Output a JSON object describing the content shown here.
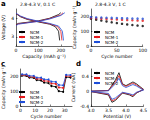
{
  "chart_data": [
    {
      "type": "line",
      "label": "a",
      "title": "2.8-4.3 V, 0.1 C",
      "xlabel": "Capacity (mAh g⁻¹)",
      "ylabel": "Voltage (V)",
      "xlim": [
        0,
        250
      ],
      "xticks": [
        0,
        100,
        200
      ],
      "ylim": [
        2.5,
        4.5
      ],
      "yticks": [
        3,
        4
      ],
      "grid": false,
      "legend": "lower left",
      "series": [
        {
          "name": "NCM",
          "color": "#000000",
          "x": [
            0,
            10,
            50,
            100,
            150,
            190,
            200,
            200,
            0,
            20,
            50,
            100,
            150,
            175,
            190,
            195
          ],
          "values": [
            3.65,
            3.72,
            3.78,
            3.86,
            4.0,
            4.2,
            4.3,
            null,
            4.25,
            4.08,
            3.94,
            3.8,
            3.68,
            3.55,
            3.3,
            2.8
          ]
        },
        {
          "name": "NCM-1",
          "color": "#e41a1c",
          "x": [
            0,
            10,
            50,
            100,
            150,
            200,
            210,
            210,
            0,
            20,
            50,
            100,
            150,
            185,
            200,
            205
          ],
          "values": [
            3.62,
            3.7,
            3.76,
            3.84,
            3.98,
            4.18,
            4.3,
            null,
            4.26,
            4.1,
            3.96,
            3.82,
            3.7,
            3.56,
            3.3,
            2.8
          ]
        },
        {
          "name": "NCM-2",
          "color": "#1f4fd8",
          "x": [
            0,
            10,
            50,
            100,
            150,
            200,
            218,
            218,
            0,
            20,
            50,
            100,
            150,
            190,
            207,
            212
          ],
          "values": [
            3.6,
            3.68,
            3.75,
            3.83,
            3.96,
            4.15,
            4.3,
            null,
            4.27,
            4.12,
            3.98,
            3.84,
            3.72,
            3.58,
            3.3,
            2.8
          ]
        }
      ]
    },
    {
      "type": "scatter",
      "label": "b",
      "title": "2.8-4.3 V, 1 C",
      "xlabel": "Cycle number",
      "ylabel": "Capacity (mAh g⁻¹)",
      "xlim": [
        0,
        100
      ],
      "xticks": [
        0,
        50,
        100
      ],
      "ylim": [
        0,
        250
      ],
      "yticks": [
        0,
        100,
        200
      ],
      "grid": false,
      "legend": "lower left",
      "marker": "circle",
      "series": [
        {
          "name": "NCM",
          "color": "#000000",
          "x": [
            0,
            10,
            20,
            30,
            40,
            50,
            60,
            70,
            80,
            90,
            100
          ],
          "values": [
            185,
            178,
            172,
            166,
            160,
            155,
            150,
            146,
            142,
            138,
            135
          ]
        },
        {
          "name": "NCM-1",
          "color": "#e41a1c",
          "x": [
            0,
            10,
            20,
            30,
            40,
            50,
            60,
            70,
            80,
            90,
            100
          ],
          "values": [
            190,
            187,
            185,
            183,
            181,
            179,
            177,
            175,
            174,
            172,
            171
          ]
        },
        {
          "name": "NCM-2",
          "color": "#1f4fd8",
          "x": [
            0,
            10,
            20,
            30,
            40,
            50,
            60,
            70,
            80,
            90,
            100
          ],
          "values": [
            195,
            193,
            192,
            191,
            190,
            189,
            188,
            187,
            186,
            185,
            184
          ]
        }
      ]
    },
    {
      "type": "line",
      "label": "c",
      "xlabel": "Cycle number",
      "ylabel": "Capacity (mAh g⁻¹)",
      "xlim": [
        0,
        35
      ],
      "xticks": [
        0,
        10,
        20,
        30
      ],
      "ylim": [
        0,
        250
      ],
      "yticks": [
        0,
        100,
        200
      ],
      "grid": false,
      "legend": "lower left",
      "marker": "circle",
      "series": [
        {
          "name": "NCM",
          "color": "#000000",
          "x": [
            1,
            4,
            6,
            9,
            11,
            14,
            16,
            19,
            21,
            24,
            26,
            29,
            31,
            34
          ],
          "values": [
            205,
            203,
            192,
            190,
            175,
            172,
            158,
            155,
            135,
            130,
            100,
            96,
            195,
            192
          ]
        },
        {
          "name": "NCM-1",
          "color": "#e41a1c",
          "x": [
            1,
            4,
            6,
            9,
            11,
            14,
            16,
            19,
            21,
            24,
            26,
            29,
            31,
            34
          ],
          "values": [
            210,
            208,
            198,
            196,
            184,
            182,
            170,
            168,
            152,
            150,
            125,
            122,
            203,
            201
          ]
        },
        {
          "name": "NCM-2",
          "color": "#1f4fd8",
          "x": [
            1,
            4,
            6,
            9,
            11,
            14,
            16,
            19,
            21,
            24,
            26,
            29,
            31,
            34
          ],
          "values": [
            214,
            213,
            204,
            203,
            192,
            191,
            180,
            179,
            165,
            163,
            142,
            140,
            210,
            209
          ]
        }
      ]
    },
    {
      "type": "line",
      "label": "d",
      "xlabel": "Potential (V)",
      "ylabel": "Current (mA)",
      "xlim": [
        3,
        4.5
      ],
      "xticks": [
        {
          "value": 3,
          "label": "3.0"
        },
        3.5,
        {
          "value": 4,
          "label": "4.0"
        },
        4.5
      ],
      "ylim": [
        -0.4,
        0.6
      ],
      "yticks": [
        -0.4,
        0,
        0.4
      ],
      "grid": false,
      "legend": "upper left",
      "series": [
        {
          "name": "NCM",
          "color": "#000000",
          "x": [
            3.0,
            3.5,
            3.7,
            3.8,
            3.9,
            4.0,
            4.2,
            4.3,
            4.5,
            4.3,
            4.2,
            4.1,
            3.9,
            3.7,
            3.6,
            3.5,
            3.0
          ],
          "values": [
            0,
            0.02,
            0.3,
            0.5,
            0.2,
            0.15,
            0.25,
            0.2,
            0.05,
            -0.05,
            -0.15,
            -0.1,
            -0.05,
            -0.25,
            -0.3,
            -0.1,
            -0.01
          ]
        },
        {
          "name": "NCM-1",
          "color": "#e41a1c",
          "x": [
            3.0,
            3.5,
            3.7,
            3.8,
            3.9,
            4.0,
            4.2,
            4.3,
            4.5,
            4.3,
            4.2,
            4.1,
            3.9,
            3.7,
            3.6,
            3.5,
            3.0
          ],
          "values": [
            0,
            0.02,
            0.25,
            0.42,
            0.18,
            0.13,
            0.22,
            0.17,
            0.04,
            -0.04,
            -0.13,
            -0.08,
            -0.04,
            -0.22,
            -0.26,
            -0.08,
            -0.01
          ]
        },
        {
          "name": "NCM-2",
          "color": "#1f4fd8",
          "x": [
            3.0,
            3.5,
            3.7,
            3.8,
            3.9,
            4.0,
            4.2,
            4.3,
            4.5,
            4.3,
            4.2,
            4.1,
            3.9,
            3.7,
            3.6,
            3.5,
            3.0
          ],
          "values": [
            0,
            0.01,
            0.2,
            0.35,
            0.15,
            0.1,
            0.18,
            0.14,
            0.03,
            -0.03,
            -0.1,
            -0.07,
            -0.03,
            -0.18,
            -0.22,
            -0.06,
            -0.01
          ]
        }
      ]
    }
  ]
}
